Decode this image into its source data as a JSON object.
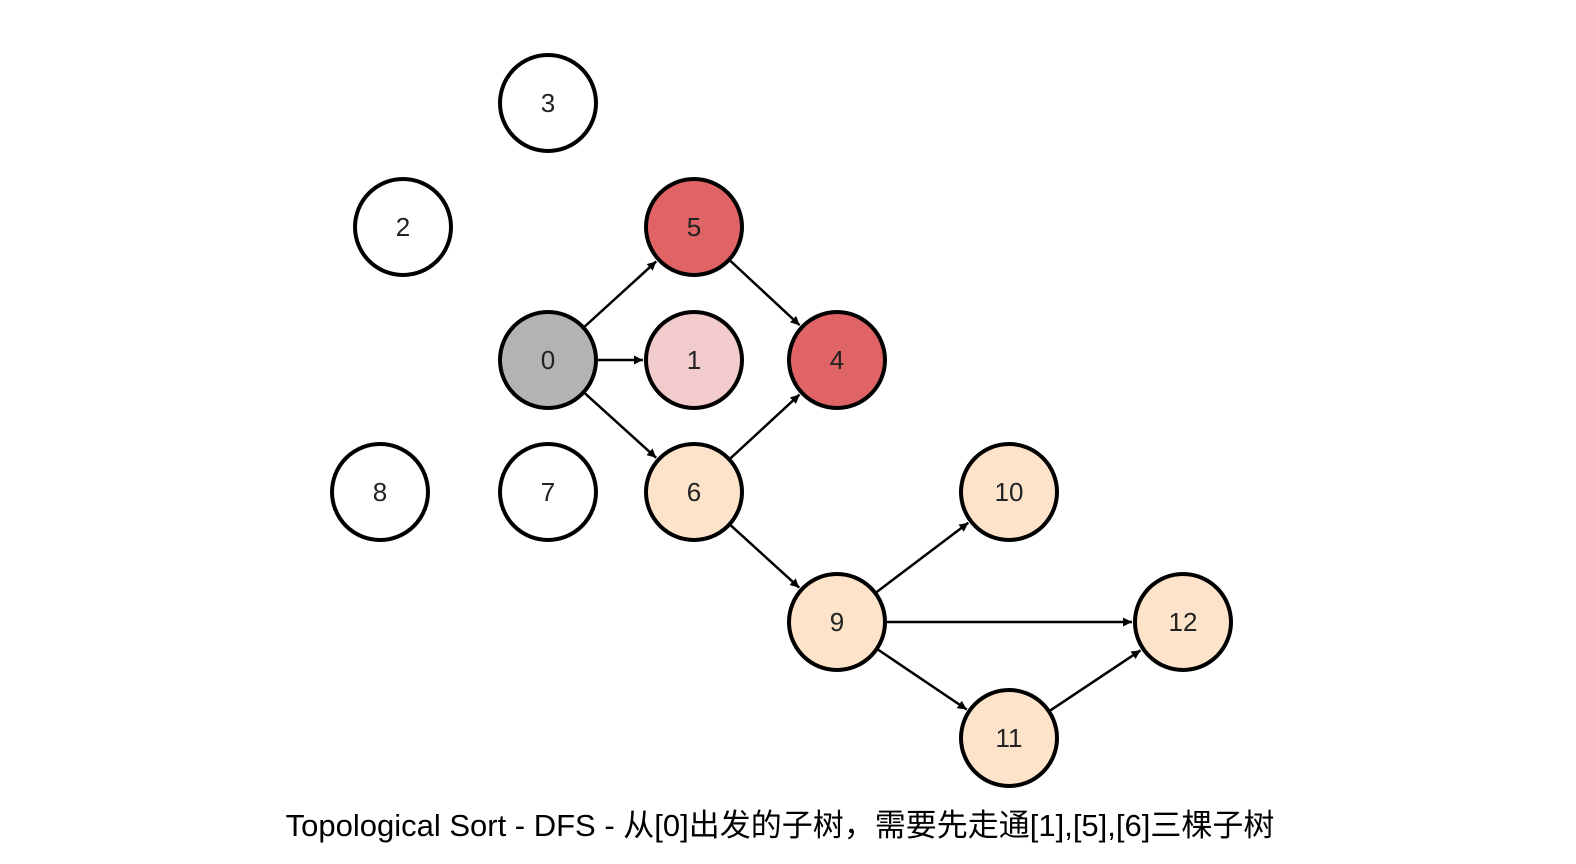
{
  "caption": "Topological Sort - DFS - 从[0]出发的子树，需要先走通[1],[5],[6]三棵子树",
  "colors": {
    "unvisited": "#ffffff",
    "current": "#b3b3b3",
    "done_first": "#f2cbcd",
    "done": "#e06466",
    "pending": "#fde3ca",
    "stroke": "#000000"
  },
  "nodes": [
    {
      "id": "n0",
      "label": "0",
      "state": "current"
    },
    {
      "id": "n1",
      "label": "1",
      "state": "done_first"
    },
    {
      "id": "n2",
      "label": "2",
      "state": "unvisited"
    },
    {
      "id": "n3",
      "label": "3",
      "state": "unvisited"
    },
    {
      "id": "n4",
      "label": "4",
      "state": "done"
    },
    {
      "id": "n5",
      "label": "5",
      "state": "done"
    },
    {
      "id": "n6",
      "label": "6",
      "state": "pending"
    },
    {
      "id": "n7",
      "label": "7",
      "state": "unvisited"
    },
    {
      "id": "n8",
      "label": "8",
      "state": "unvisited"
    },
    {
      "id": "n9",
      "label": "9",
      "state": "pending"
    },
    {
      "id": "n10",
      "label": "10",
      "state": "pending"
    },
    {
      "id": "n11",
      "label": "11",
      "state": "pending"
    },
    {
      "id": "n12",
      "label": "12",
      "state": "pending"
    }
  ],
  "edges": [
    {
      "from": "n0",
      "to": "n5"
    },
    {
      "from": "n0",
      "to": "n1"
    },
    {
      "from": "n0",
      "to": "n6"
    },
    {
      "from": "n5",
      "to": "n4"
    },
    {
      "from": "n6",
      "to": "n4"
    },
    {
      "from": "n6",
      "to": "n9"
    },
    {
      "from": "n9",
      "to": "n10"
    },
    {
      "from": "n9",
      "to": "n12"
    },
    {
      "from": "n9",
      "to": "n11"
    },
    {
      "from": "n11",
      "to": "n12"
    }
  ]
}
